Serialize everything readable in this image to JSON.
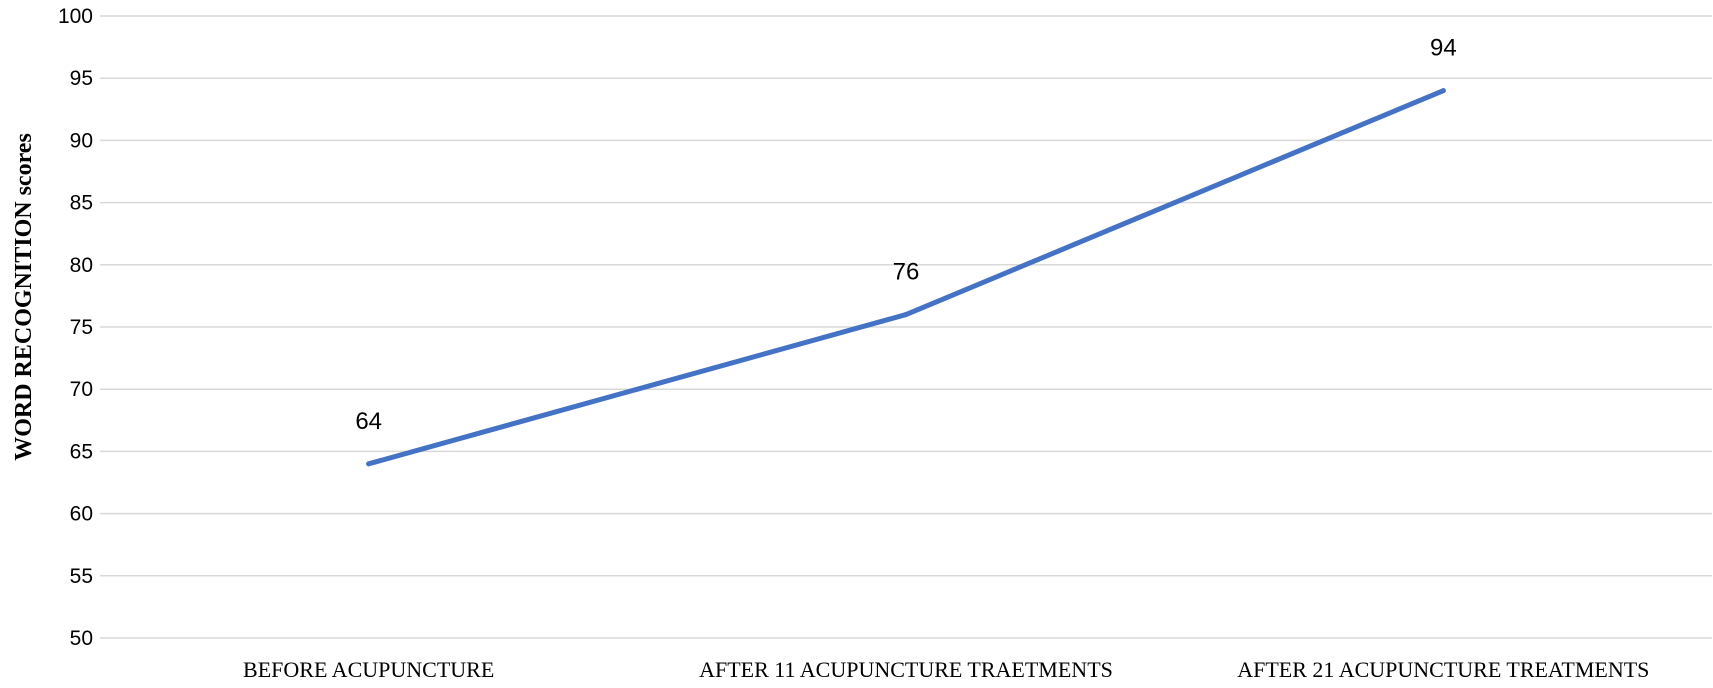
{
  "chart_data": {
    "type": "line",
    "categories": [
      "BEFORE ACUPUNCTURE",
      "AFTER 11 ACUPUNCTURE TRAETMENTS",
      "AFTER 21 ACUPUNCTURE TREATMENTS"
    ],
    "series": [
      {
        "values": [
          64,
          76,
          94
        ],
        "color": "#4472c4"
      }
    ],
    "data_labels": [
      "64",
      "76",
      "94"
    ],
    "title": "",
    "xlabel": "",
    "ylabel": "WORD RECOGNITION scores",
    "ylim": [
      50,
      100
    ],
    "y_ticks": [
      "50",
      "55",
      "60",
      "65",
      "70",
      "75",
      "80",
      "85",
      "90",
      "95",
      "100"
    ],
    "grid": "horizontal",
    "legend": "none"
  }
}
